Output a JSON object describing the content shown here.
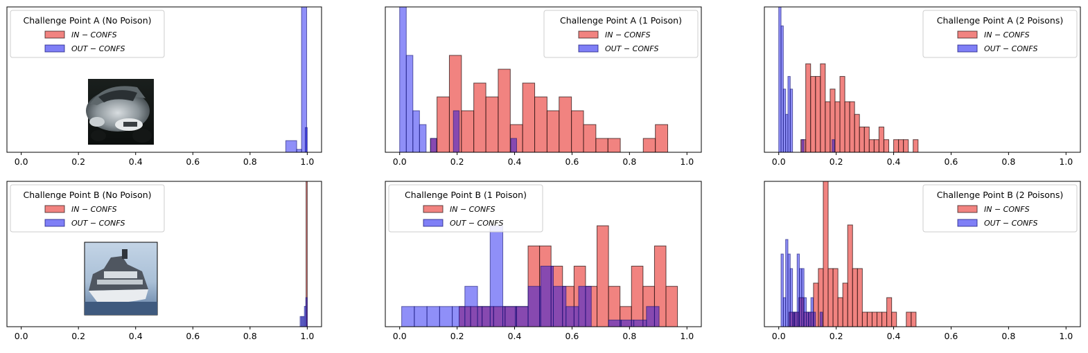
{
  "colors": {
    "in": "#e8302b",
    "out": "#0000ee",
    "in_hex_fill": "#f08080",
    "out_hex_fill": "#7b7bf7",
    "edge": "#000000"
  },
  "legend_labels": {
    "in": "IN − CONFS",
    "out": "OUT − CONFS"
  },
  "chart_data": [
    {
      "type": "bar",
      "title": "Challenge Point A (No Poison)",
      "legend_title": "Challenge Point A (No Poison)",
      "legend_position": "top-left",
      "xlim": [
        -0.05,
        1.05
      ],
      "xticks": [
        0.0,
        0.2,
        0.4,
        0.6,
        0.8,
        1.0
      ],
      "y_axis_visible": false,
      "ylim": [
        0,
        100
      ],
      "thumbnail": "car-thumbnail",
      "series": [
        {
          "name": "IN − CONFS",
          "color": "#f08080",
          "bars": []
        },
        {
          "name": "OUT − CONFS",
          "color": "#7b7bf7",
          "bars": [
            [
              0.925,
              0.963,
              8
            ],
            [
              0.963,
              0.98,
              2
            ],
            [
              0.98,
              0.998,
              100
            ],
            [
              0.993,
              1.0,
              17
            ]
          ]
        }
      ]
    },
    {
      "type": "bar",
      "title": "Challenge Point A (1 Poison)",
      "legend_title": "Challenge Point A (1 Poison)",
      "legend_position": "top-right",
      "xlim": [
        -0.05,
        1.05
      ],
      "xticks": [
        0.0,
        0.2,
        0.4,
        0.6,
        0.8,
        1.0
      ],
      "y_axis_visible": false,
      "ylim": [
        0,
        10.5
      ],
      "series": [
        {
          "name": "IN − CONFS",
          "color": "#f08080",
          "bars": [
            [
              0.107,
              0.13,
              1
            ],
            [
              0.13,
              0.173,
              4
            ],
            [
              0.173,
              0.215,
              7
            ],
            [
              0.215,
              0.258,
              3
            ],
            [
              0.258,
              0.3,
              5
            ],
            [
              0.3,
              0.343,
              4
            ],
            [
              0.343,
              0.385,
              6
            ],
            [
              0.385,
              0.428,
              2
            ],
            [
              0.428,
              0.47,
              5
            ],
            [
              0.47,
              0.513,
              4
            ],
            [
              0.513,
              0.555,
              3
            ],
            [
              0.555,
              0.598,
              4
            ],
            [
              0.598,
              0.64,
              3
            ],
            [
              0.64,
              0.683,
              2
            ],
            [
              0.683,
              0.725,
              1
            ],
            [
              0.725,
              0.768,
              1
            ],
            [
              0.848,
              0.89,
              1
            ],
            [
              0.89,
              0.933,
              2
            ]
          ]
        },
        {
          "name": "OUT − CONFS",
          "color": "#7b7bf7",
          "bars": [
            [
              0.0,
              0.023,
              11
            ],
            [
              0.023,
              0.046,
              7
            ],
            [
              0.046,
              0.069,
              3
            ],
            [
              0.069,
              0.092,
              2
            ],
            [
              0.108,
              0.128,
              1
            ],
            [
              0.187,
              0.207,
              3
            ],
            [
              0.387,
              0.407,
              1
            ]
          ]
        }
      ]
    },
    {
      "type": "bar",
      "title": "Challenge Point A (2 Poisons)",
      "legend_title": "Challenge Point A (2 Poisons)",
      "legend_position": "top-right",
      "xlim": [
        -0.05,
        1.05
      ],
      "xticks": [
        0.0,
        0.2,
        0.4,
        0.6,
        0.8,
        1.0
      ],
      "y_axis_visible": false,
      "ylim": [
        0,
        11.5
      ],
      "series": [
        {
          "name": "IN − CONFS",
          "color": "#f08080",
          "bars": [
            [
              0.077,
              0.094,
              1
            ],
            [
              0.094,
              0.111,
              7
            ],
            [
              0.111,
              0.128,
              6
            ],
            [
              0.128,
              0.145,
              6
            ],
            [
              0.145,
              0.162,
              7
            ],
            [
              0.162,
              0.179,
              4
            ],
            [
              0.179,
              0.196,
              5
            ],
            [
              0.196,
              0.213,
              4
            ],
            [
              0.213,
              0.23,
              6
            ],
            [
              0.23,
              0.247,
              4
            ],
            [
              0.247,
              0.264,
              4
            ],
            [
              0.264,
              0.281,
              3
            ],
            [
              0.281,
              0.298,
              2
            ],
            [
              0.298,
              0.315,
              2
            ],
            [
              0.315,
              0.332,
              1
            ],
            [
              0.332,
              0.349,
              1
            ],
            [
              0.349,
              0.366,
              2
            ],
            [
              0.366,
              0.383,
              1
            ],
            [
              0.4,
              0.417,
              1
            ],
            [
              0.417,
              0.434,
              1
            ],
            [
              0.434,
              0.451,
              1
            ],
            [
              0.468,
              0.485,
              1
            ]
          ]
        },
        {
          "name": "OUT − CONFS",
          "color": "#7b7bf7",
          "bars": [
            [
              0.0,
              0.008,
              12
            ],
            [
              0.008,
              0.016,
              10
            ],
            [
              0.016,
              0.024,
              5
            ],
            [
              0.024,
              0.032,
              3
            ],
            [
              0.032,
              0.04,
              6
            ],
            [
              0.04,
              0.048,
              5
            ],
            [
              0.08,
              0.088,
              1
            ],
            [
              0.186,
              0.194,
              1
            ]
          ]
        }
      ]
    },
    {
      "type": "bar",
      "title": "Challenge Point B (No Poison)",
      "legend_title": "Challenge Point B (No Poison)",
      "legend_position": "top-left",
      "xlim": [
        -0.05,
        1.05
      ],
      "xticks": [
        0.0,
        0.2,
        0.4,
        0.6,
        0.8,
        1.0
      ],
      "y_axis_visible": false,
      "ylim": [
        0,
        100
      ],
      "thumbnail": "ship-thumbnail",
      "series": [
        {
          "name": "IN − CONFS",
          "color": "#f08080",
          "bars": [
            [
              0.996,
              1.0,
              100
            ]
          ]
        },
        {
          "name": "OUT − CONFS",
          "color": "#7b7bf7",
          "bars": [
            [
              0.975,
              0.98,
              7
            ],
            [
              0.98,
              0.985,
              7
            ],
            [
              0.985,
              0.99,
              7
            ],
            [
              0.99,
              0.995,
              14
            ],
            [
              0.995,
              1.0,
              20
            ]
          ]
        }
      ]
    },
    {
      "type": "bar",
      "title": "Challenge Point B (1 Poison)",
      "legend_title": "Challenge Point B (1 Poison)",
      "legend_position": "top-left",
      "xlim": [
        -0.05,
        1.05
      ],
      "xticks": [
        0.0,
        0.2,
        0.4,
        0.6,
        0.8,
        1.0
      ],
      "y_axis_visible": false,
      "ylim": [
        0,
        7.2
      ],
      "series": [
        {
          "name": "IN − CONFS",
          "color": "#f08080",
          "bars": [
            [
              0.207,
              0.247,
              1
            ],
            [
              0.247,
              0.287,
              1
            ],
            [
              0.287,
              0.327,
              1
            ],
            [
              0.327,
              0.367,
              1
            ],
            [
              0.367,
              0.407,
              1
            ],
            [
              0.407,
              0.447,
              1
            ],
            [
              0.447,
              0.487,
              4
            ],
            [
              0.487,
              0.527,
              4
            ],
            [
              0.527,
              0.567,
              3
            ],
            [
              0.567,
              0.607,
              2
            ],
            [
              0.607,
              0.647,
              3
            ],
            [
              0.647,
              0.687,
              2
            ],
            [
              0.687,
              0.727,
              5
            ],
            [
              0.727,
              0.767,
              2
            ],
            [
              0.767,
              0.807,
              1
            ],
            [
              0.807,
              0.847,
              3
            ],
            [
              0.847,
              0.887,
              2
            ],
            [
              0.887,
              0.927,
              4
            ],
            [
              0.927,
              0.967,
              2
            ]
          ]
        },
        {
          "name": "OUT − CONFS",
          "color": "#7b7bf7",
          "bars": [
            [
              0.007,
              0.051,
              1
            ],
            [
              0.051,
              0.095,
              1
            ],
            [
              0.095,
              0.139,
              1
            ],
            [
              0.139,
              0.183,
              1
            ],
            [
              0.183,
              0.227,
              1
            ],
            [
              0.227,
              0.271,
              2
            ],
            [
              0.271,
              0.315,
              1
            ],
            [
              0.315,
              0.359,
              5
            ],
            [
              0.359,
              0.403,
              1
            ],
            [
              0.403,
              0.447,
              1
            ],
            [
              0.447,
              0.491,
              2
            ],
            [
              0.491,
              0.535,
              3
            ],
            [
              0.535,
              0.579,
              2
            ],
            [
              0.579,
              0.623,
              1
            ],
            [
              0.623,
              0.667,
              2
            ],
            [
              0.727,
              0.771,
              0.33
            ],
            [
              0.771,
              0.815,
              0.33
            ],
            [
              0.815,
              0.859,
              0.33
            ],
            [
              0.859,
              0.903,
              1
            ]
          ]
        }
      ]
    },
    {
      "type": "bar",
      "title": "Challenge Point B (2 Poisons)",
      "legend_title": "Challenge Point B (2 Poisons)",
      "legend_position": "top-right",
      "xlim": [
        -0.05,
        1.05
      ],
      "xticks": [
        0.0,
        0.2,
        0.4,
        0.6,
        0.8,
        1.0
      ],
      "y_axis_visible": false,
      "ylim": [
        0,
        10
      ],
      "series": [
        {
          "name": "IN − CONFS",
          "color": "#f08080",
          "bars": [
            [
              0.036,
              0.053,
              1
            ],
            [
              0.053,
              0.07,
              1
            ],
            [
              0.07,
              0.087,
              2
            ],
            [
              0.087,
              0.104,
              1
            ],
            [
              0.104,
              0.121,
              1
            ],
            [
              0.121,
              0.138,
              3
            ],
            [
              0.138,
              0.155,
              4
            ],
            [
              0.155,
              0.172,
              10
            ],
            [
              0.172,
              0.189,
              4
            ],
            [
              0.189,
              0.206,
              4
            ],
            [
              0.206,
              0.223,
              2
            ],
            [
              0.223,
              0.24,
              3
            ],
            [
              0.24,
              0.257,
              7
            ],
            [
              0.257,
              0.274,
              4
            ],
            [
              0.274,
              0.291,
              4
            ],
            [
              0.291,
              0.308,
              1
            ],
            [
              0.308,
              0.325,
              1
            ],
            [
              0.325,
              0.342,
              1
            ],
            [
              0.342,
              0.359,
              1
            ],
            [
              0.359,
              0.376,
              1
            ],
            [
              0.376,
              0.393,
              2
            ],
            [
              0.393,
              0.41,
              1
            ],
            [
              0.444,
              0.461,
              1
            ],
            [
              0.461,
              0.478,
              1
            ]
          ]
        },
        {
          "name": "OUT − CONFS",
          "color": "#7b7bf7",
          "bars": [
            [
              0.008,
              0.016,
              5
            ],
            [
              0.016,
              0.024,
              2
            ],
            [
              0.024,
              0.032,
              6
            ],
            [
              0.032,
              0.04,
              5
            ],
            [
              0.04,
              0.048,
              4
            ],
            [
              0.048,
              0.056,
              1
            ],
            [
              0.056,
              0.064,
              1
            ],
            [
              0.064,
              0.072,
              5
            ],
            [
              0.072,
              0.08,
              4
            ],
            [
              0.08,
              0.088,
              4
            ],
            [
              0.088,
              0.096,
              2
            ],
            [
              0.096,
              0.104,
              1
            ],
            [
              0.104,
              0.112,
              1
            ],
            [
              0.112,
              0.12,
              2
            ],
            [
              0.12,
              0.128,
              1
            ],
            [
              0.144,
              0.152,
              1
            ]
          ]
        }
      ]
    }
  ]
}
